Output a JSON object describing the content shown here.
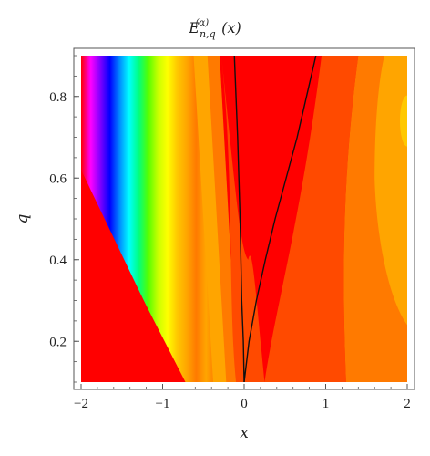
{
  "chart_data": {
    "type": "heatmap",
    "title": "E",
    "title_sub": "n,q",
    "title_sup": "(α)",
    "title_arg": "(x)",
    "xlabel": "x",
    "ylabel": "q",
    "xlim": [
      -2,
      2
    ],
    "ylim": [
      0.1,
      0.9
    ],
    "x_ticks": [
      -2,
      -1,
      0,
      1,
      2
    ],
    "x_tick_labels": [
      "−2",
      "−1",
      "0",
      "1",
      "2"
    ],
    "y_ticks": [
      0.2,
      0.4,
      0.6,
      0.8
    ],
    "y_tick_labels": [
      "0.2",
      "0.4",
      "0.6",
      "0.8"
    ],
    "grid": false,
    "legend": "none",
    "colormap": [
      "#ff0000",
      "#ff4a00",
      "#ff7a00",
      "#ffa500",
      "#ffc800",
      "#ffff00",
      "#c8ff00",
      "#55ff00",
      "#00ff80",
      "#00ffff",
      "#0088ff",
      "#0000ff",
      "#8000ff",
      "#ff00ff"
    ],
    "contour_lines": [
      {
        "name": "left",
        "points": [
          [
            -0.12,
            0.9
          ],
          [
            -0.08,
            0.7
          ],
          [
            -0.05,
            0.5
          ],
          [
            -0.04,
            0.4
          ],
          [
            -0.03,
            0.3
          ],
          [
            -0.01,
            0.2
          ],
          [
            0.0,
            0.1
          ]
        ]
      },
      {
        "name": "right",
        "points": [
          [
            0.88,
            0.9
          ],
          [
            0.65,
            0.7
          ],
          [
            0.38,
            0.5
          ],
          [
            0.26,
            0.4
          ],
          [
            0.15,
            0.3
          ],
          [
            0.06,
            0.2
          ],
          [
            0.0,
            0.1
          ]
        ]
      }
    ]
  }
}
